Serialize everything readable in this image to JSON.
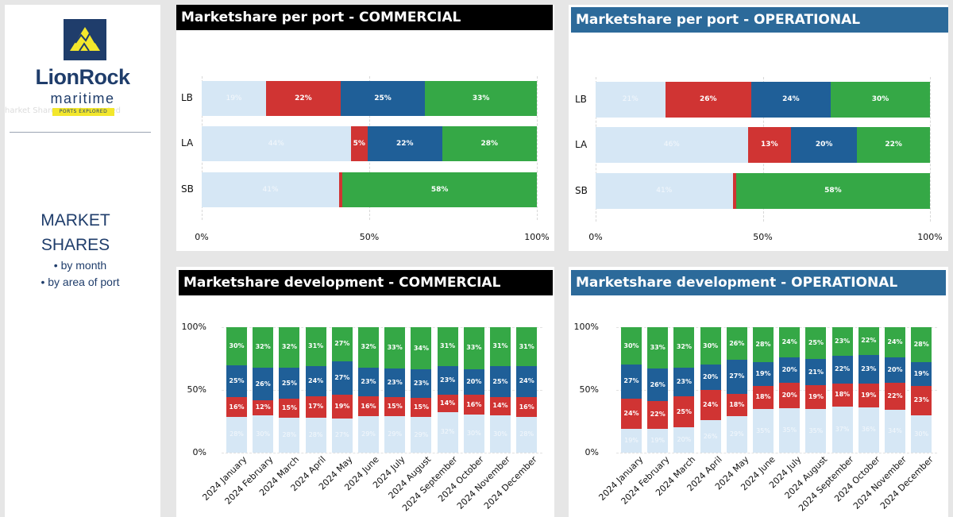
{
  "sidebar": {
    "brand_name": "LionRock",
    "brand_sub": "maritime",
    "tagline": "PORTS EXPLORED",
    "ghost_text": "harket Share report exported",
    "title_line1": "MARKET",
    "title_line2": "SHARES",
    "sub1": "• by month",
    "sub2": "• by area of port"
  },
  "colors": {
    "light": "#d6e7f5",
    "red": "#d03433",
    "blue": "#1f5f98",
    "green": "#35a846",
    "brand": "#1f3d6b",
    "accent": "#f3e72c"
  },
  "chart_data": [
    {
      "id": "ports_commercial",
      "title": "Marketshare per port - COMMERCIAL",
      "type": "bar",
      "orientation": "horizontal",
      "stacked": true,
      "categories": [
        "LB",
        "LA",
        "SB"
      ],
      "series": [
        {
          "name": "light",
          "values": [
            19,
            44,
            41
          ]
        },
        {
          "name": "red",
          "values": [
            22,
            5,
            1
          ]
        },
        {
          "name": "blue",
          "values": [
            25,
            22,
            0
          ]
        },
        {
          "name": "green",
          "values": [
            33,
            28,
            58
          ]
        }
      ],
      "labels": [
        [
          "19%",
          "22%",
          "25%",
          "33%"
        ],
        [
          "44%",
          "5%",
          "22%",
          "28%"
        ],
        [
          "41%",
          "",
          "",
          "58%"
        ]
      ],
      "xticks": [
        "0%",
        "50%",
        "100%"
      ]
    },
    {
      "id": "ports_operational",
      "title": "Marketshare per port - OPERATIONAL",
      "type": "bar",
      "orientation": "horizontal",
      "stacked": true,
      "categories": [
        "LB",
        "LA",
        "SB"
      ],
      "series": [
        {
          "name": "light",
          "values": [
            21,
            46,
            41
          ]
        },
        {
          "name": "red",
          "values": [
            26,
            13,
            1
          ]
        },
        {
          "name": "blue",
          "values": [
            24,
            20,
            0
          ]
        },
        {
          "name": "green",
          "values": [
            30,
            22,
            58
          ]
        }
      ],
      "labels": [
        [
          "21%",
          "26%",
          "24%",
          "30%"
        ],
        [
          "46%",
          "13%",
          "20%",
          "22%"
        ],
        [
          "41%",
          "",
          "",
          "58%"
        ]
      ],
      "xticks": [
        "0%",
        "50%",
        "100%"
      ]
    },
    {
      "id": "dev_commercial",
      "title": "Marketshare development - COMMERCIAL",
      "type": "bar",
      "orientation": "vertical",
      "stacked": true,
      "categories": [
        "2024 January",
        "2024 February",
        "2024 March",
        "2024 April",
        "2024 May",
        "2024 June",
        "2024 July",
        "2024 August",
        "2024 September",
        "2024 October",
        "2024 November",
        "2024 December"
      ],
      "series": [
        {
          "name": "light",
          "values": [
            28,
            30,
            28,
            28,
            27,
            29,
            29,
            29,
            32,
            30,
            30,
            28
          ]
        },
        {
          "name": "red",
          "values": [
            16,
            12,
            15,
            17,
            19,
            16,
            15,
            15,
            14,
            16,
            14,
            16
          ]
        },
        {
          "name": "blue",
          "values": [
            25,
            26,
            25,
            24,
            27,
            23,
            23,
            23,
            23,
            20,
            25,
            24
          ]
        },
        {
          "name": "green",
          "values": [
            30,
            32,
            32,
            31,
            27,
            32,
            33,
            34,
            31,
            33,
            31,
            31
          ]
        }
      ],
      "yticks": [
        "100%",
        "50%",
        "0%"
      ]
    },
    {
      "id": "dev_operational",
      "title": "Marketshare development - OPERATIONAL",
      "type": "bar",
      "orientation": "vertical",
      "stacked": true,
      "categories": [
        "2024 January",
        "2024 February",
        "2024 March",
        "2024 April",
        "2024 May",
        "2024 June",
        "2024 July",
        "2024 August",
        "2024 September",
        "2024 October",
        "2024 November",
        "2024 December"
      ],
      "series": [
        {
          "name": "light",
          "values": [
            19,
            19,
            20,
            26,
            29,
            35,
            35,
            35,
            37,
            36,
            34,
            30
          ]
        },
        {
          "name": "red",
          "values": [
            24,
            22,
            25,
            24,
            18,
            18,
            20,
            19,
            18,
            19,
            22,
            23
          ]
        },
        {
          "name": "blue",
          "values": [
            27,
            26,
            23,
            20,
            27,
            19,
            20,
            21,
            22,
            23,
            20,
            19
          ]
        },
        {
          "name": "green",
          "values": [
            30,
            33,
            32,
            30,
            26,
            28,
            24,
            25,
            23,
            22,
            24,
            28
          ]
        }
      ],
      "yticks": [
        "100%",
        "50%",
        "0%"
      ]
    }
  ]
}
